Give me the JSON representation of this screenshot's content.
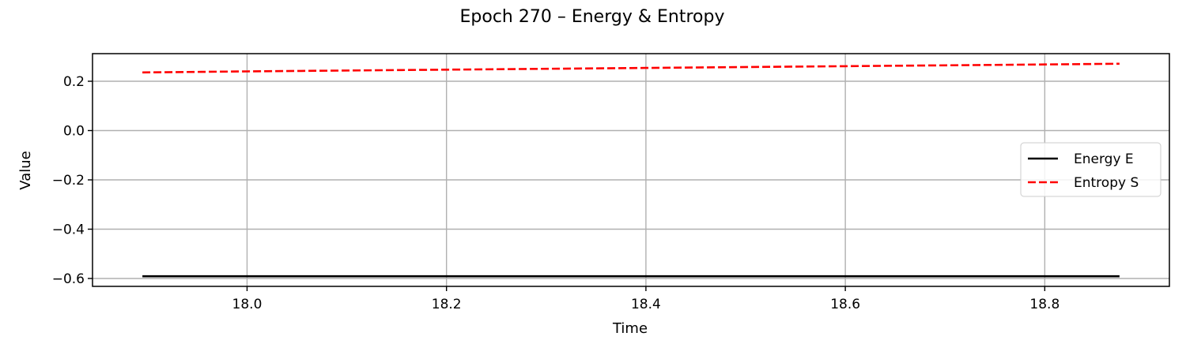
{
  "chart_data": {
    "type": "line",
    "title": "Epoch 270 – Energy & Entropy",
    "xlabel": "Time",
    "ylabel": "Value",
    "xlim": [
      17.845,
      18.925
    ],
    "ylim": [
      -0.632,
      0.312
    ],
    "xticks": [
      18.0,
      18.2,
      18.4,
      18.6,
      18.8
    ],
    "xtick_labels": [
      "18.0",
      "18.2",
      "18.4",
      "18.6",
      "18.8"
    ],
    "yticks": [
      0.2,
      0.0,
      -0.2,
      -0.4,
      -0.6
    ],
    "ytick_labels": [
      "0.2",
      "0.0",
      "−0.2",
      "−0.4",
      "−0.6"
    ],
    "grid": true,
    "legend_position": "center-right",
    "series": [
      {
        "name": "Energy E",
        "color": "#000000",
        "style": "solid",
        "x": [
          17.895,
          18.0,
          18.2,
          18.4,
          18.6,
          18.8,
          18.875
        ],
        "y": [
          -0.591,
          -0.591,
          -0.591,
          -0.591,
          -0.591,
          -0.591,
          -0.591
        ]
      },
      {
        "name": "Entropy S",
        "color": "#ff0000",
        "style": "dashed",
        "x": [
          17.895,
          18.0,
          18.2,
          18.4,
          18.6,
          18.8,
          18.875
        ],
        "y": [
          0.236,
          0.24,
          0.247,
          0.254,
          0.261,
          0.268,
          0.271
        ]
      }
    ]
  }
}
